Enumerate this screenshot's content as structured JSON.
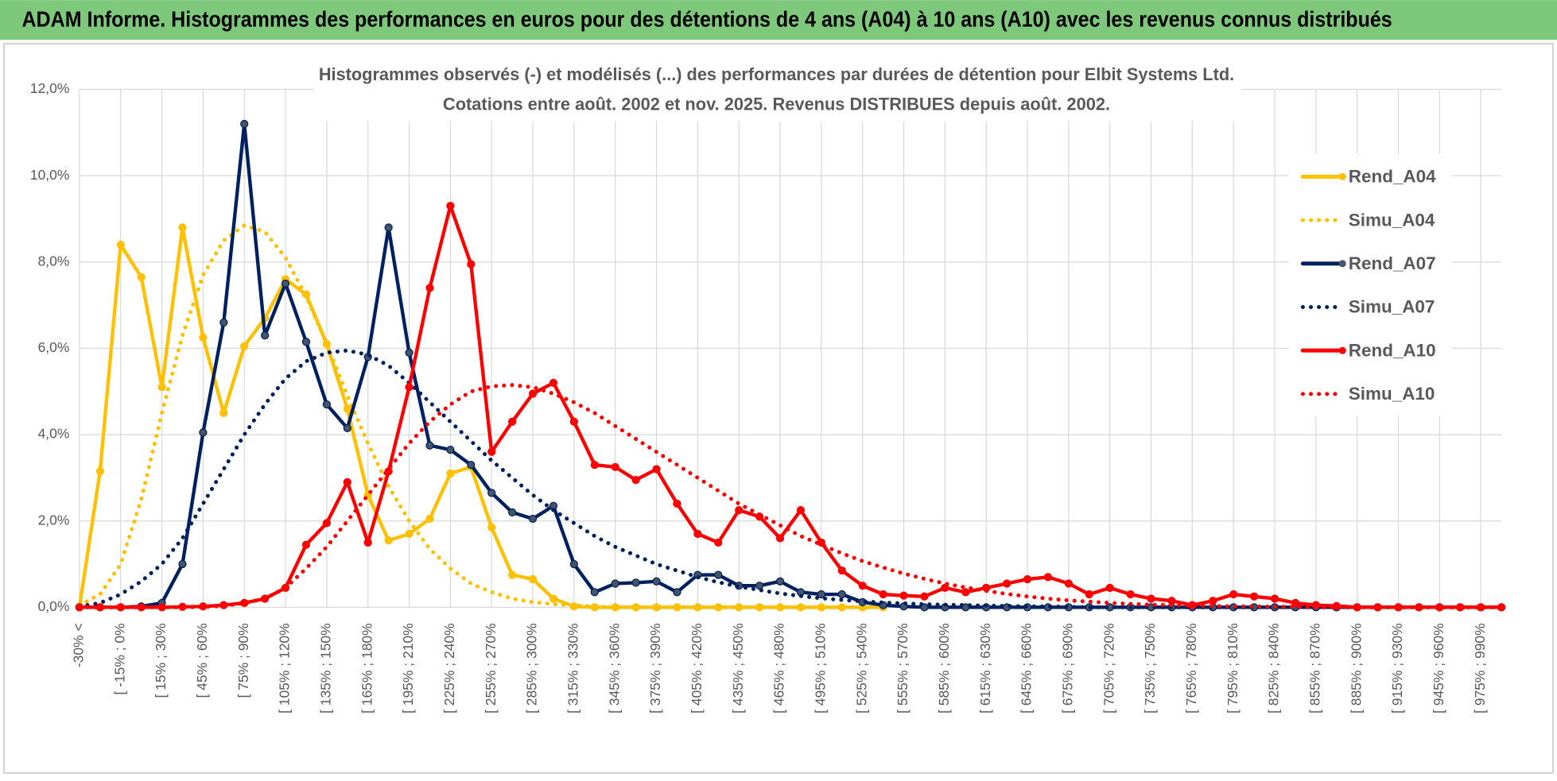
{
  "header": {
    "title": "ADAM Informe. Histogrammes des performances en euros pour des détentions de 4 ans (A04) à 10 ans (A10) avec les revenus connus distribués"
  },
  "chart_data": {
    "type": "line",
    "title": "Histogrammes observés (-) et modélisés (...) des performances par durées de détention pour Elbit Systems Ltd.",
    "subtitle": "Cotations entre août. 2002 et nov. 2025. Revenus DISTRIBUES depuis août. 2002.",
    "categories": [
      "-30% <",
      null,
      "[ -15% ; 0%",
      null,
      "[ 15% ; 30%",
      null,
      "[ 45% ; 60%",
      null,
      "[ 75% ; 90%",
      null,
      "[ 105% ; 120%",
      null,
      "[ 135% ; 150%",
      null,
      "[ 165% ; 180%",
      null,
      "[ 195% ; 210%",
      null,
      "[ 225% ; 240%",
      null,
      "[ 255% ; 270%",
      null,
      "[ 285% ; 300%",
      null,
      "[ 315% ; 330%",
      null,
      "[ 345% ; 360%",
      null,
      "[ 375% ; 390%",
      null,
      "[ 405% ; 420%",
      null,
      "[ 435% ; 450%",
      null,
      "[ 465% ; 480%",
      null,
      "[ 495% ; 510%",
      null,
      "[ 525% ; 540%",
      null,
      "[ 555% ; 570%",
      null,
      "[ 585% ; 600%",
      null,
      "[ 615% ; 630%",
      null,
      "[ 645% ; 660%",
      null,
      "[ 675% ; 690%",
      null,
      "[ 705% ; 720%",
      null,
      "[ 735% ; 750%",
      null,
      "[ 765% ; 780%",
      null,
      "[ 795% ; 810%",
      null,
      "[ 825% ; 840%",
      null,
      "[ 855% ; 870%",
      null,
      "[ 885% ; 900%",
      null,
      "[ 915% ; 930%",
      null,
      "[ 945% ; 960%",
      null,
      "[ 975% ; 990%",
      null
    ],
    "ylim": [
      0,
      12
    ],
    "yticks": [
      {
        "value": 0,
        "label": "0,0%"
      },
      {
        "value": 2,
        "label": "2,0%"
      },
      {
        "value": 4,
        "label": "4,0%"
      },
      {
        "value": 6,
        "label": "6,0%"
      },
      {
        "value": 8,
        "label": "8,0%"
      },
      {
        "value": 10,
        "label": "10,0%"
      },
      {
        "value": 12,
        "label": "12,0%"
      }
    ],
    "grid": true,
    "legend": "right",
    "series": [
      {
        "name": "Rend_A04",
        "color": "#ffc000",
        "line_style": "solid",
        "markers": true,
        "values": [
          0,
          3.15,
          8.4,
          7.65,
          5.1,
          8.8,
          6.25,
          4.5,
          6.05,
          6.7,
          7.6,
          7.25,
          6.1,
          4.6,
          2.6,
          1.55,
          1.7,
          2.05,
          3.1,
          3.25,
          1.85,
          0.75,
          0.65,
          0.2,
          0.02,
          0,
          0,
          0,
          0,
          0,
          0,
          0,
          0,
          0,
          0,
          0,
          0,
          0,
          0,
          0,
          null,
          null,
          null,
          null,
          null,
          null,
          null,
          null,
          null,
          null,
          null,
          null,
          null,
          null,
          null,
          null,
          null,
          null,
          null,
          null,
          null,
          null,
          null,
          null,
          null,
          null,
          null,
          null,
          null,
          null
        ]
      },
      {
        "name": "Simu_A04",
        "color": "#ffc000",
        "line_style": "dotted",
        "markers": false,
        "values": [
          0.05,
          0.3,
          1.0,
          2.5,
          4.5,
          6.3,
          7.7,
          8.5,
          8.85,
          8.7,
          8.1,
          7.2,
          6.1,
          4.9,
          3.8,
          2.8,
          2.0,
          1.35,
          0.9,
          0.55,
          0.35,
          0.2,
          0.12,
          0.07,
          0.04,
          0.02,
          0,
          0,
          0,
          0,
          0,
          0,
          0,
          0,
          0,
          0,
          0,
          0,
          0,
          0,
          null,
          null,
          null,
          null,
          null,
          null,
          null,
          null,
          null,
          null,
          null,
          null,
          null,
          null,
          null,
          null,
          null,
          null,
          null,
          null,
          null,
          null,
          null,
          null,
          null,
          null,
          null,
          null,
          null,
          null
        ]
      },
      {
        "name": "Rend_A07",
        "color": "#002060",
        "line_style": "solid",
        "markers": true,
        "values": [
          0,
          0,
          0,
          0.02,
          0.1,
          1.0,
          4.05,
          6.6,
          11.2,
          6.3,
          7.5,
          6.15,
          4.7,
          4.15,
          5.8,
          8.8,
          5.9,
          3.75,
          3.65,
          3.3,
          2.65,
          2.2,
          2.05,
          2.35,
          1.0,
          0.35,
          0.55,
          0.57,
          0.6,
          0.35,
          0.75,
          0.75,
          0.5,
          0.5,
          0.6,
          0.35,
          0.3,
          0.3,
          0.12,
          0.05,
          0.02,
          0,
          0,
          0,
          0,
          0,
          0,
          0,
          0,
          0,
          0,
          0,
          0,
          0,
          0,
          0,
          0,
          0,
          0,
          0,
          0,
          0,
          0,
          0,
          0,
          0,
          0,
          0,
          0,
          0
        ]
      },
      {
        "name": "Simu_A07",
        "color": "#002060",
        "line_style": "dotted",
        "markers": false,
        "values": [
          0.02,
          0.1,
          0.3,
          0.6,
          1.0,
          1.6,
          2.4,
          3.2,
          4.0,
          4.7,
          5.3,
          5.7,
          5.9,
          5.95,
          5.85,
          5.6,
          5.2,
          4.75,
          4.3,
          3.85,
          3.4,
          3.0,
          2.6,
          2.25,
          1.95,
          1.65,
          1.4,
          1.2,
          1.0,
          0.85,
          0.7,
          0.58,
          0.48,
          0.4,
          0.32,
          0.26,
          0.21,
          0.17,
          0.14,
          0.11,
          0.09,
          0.07,
          0.06,
          0.05,
          0.04,
          0.03,
          0.02,
          0.02,
          0.01,
          0,
          0,
          0,
          0,
          0,
          0,
          0,
          0,
          0,
          0,
          0,
          0,
          0,
          0,
          0,
          0,
          0,
          0,
          0,
          0,
          0
        ]
      },
      {
        "name": "Rend_A10",
        "color": "#ff0000",
        "line_style": "solid",
        "markers": true,
        "values": [
          0,
          0,
          0,
          0,
          0,
          0.01,
          0.02,
          0.05,
          0.1,
          0.2,
          0.45,
          1.45,
          1.95,
          2.9,
          1.5,
          3.15,
          5.1,
          7.4,
          9.3,
          7.95,
          3.6,
          4.3,
          4.95,
          5.2,
          4.3,
          3.3,
          3.25,
          2.95,
          3.2,
          2.4,
          1.7,
          1.5,
          2.25,
          2.1,
          1.6,
          2.25,
          1.5,
          0.85,
          0.5,
          0.3,
          0.27,
          0.25,
          0.45,
          0.35,
          0.45,
          0.55,
          0.65,
          0.7,
          0.55,
          0.3,
          0.45,
          0.3,
          0.2,
          0.15,
          0.05,
          0.15,
          0.3,
          0.25,
          0.2,
          0.1,
          0.05,
          0.03,
          0,
          0,
          0,
          0,
          0,
          0,
          0,
          0
        ]
      },
      {
        "name": "Simu_A10",
        "color": "#ff0000",
        "line_style": "dotted",
        "markers": false,
        "values": [
          0,
          0,
          0,
          0,
          0,
          0,
          0.01,
          0.03,
          0.1,
          0.2,
          0.45,
          0.9,
          1.4,
          2.0,
          2.6,
          3.2,
          3.8,
          4.3,
          4.7,
          5.0,
          5.12,
          5.15,
          5.1,
          4.95,
          4.75,
          4.5,
          4.2,
          3.9,
          3.6,
          3.3,
          3.0,
          2.7,
          2.4,
          2.15,
          1.9,
          1.65,
          1.45,
          1.25,
          1.07,
          0.92,
          0.78,
          0.66,
          0.55,
          0.46,
          0.38,
          0.31,
          0.25,
          0.2,
          0.16,
          0.13,
          0.1,
          0.08,
          0.06,
          0.05,
          0.04,
          0.03,
          0.02,
          0.02,
          0.01,
          0.01,
          0,
          0,
          0,
          0,
          0,
          0,
          0,
          0,
          0,
          0
        ]
      }
    ]
  }
}
